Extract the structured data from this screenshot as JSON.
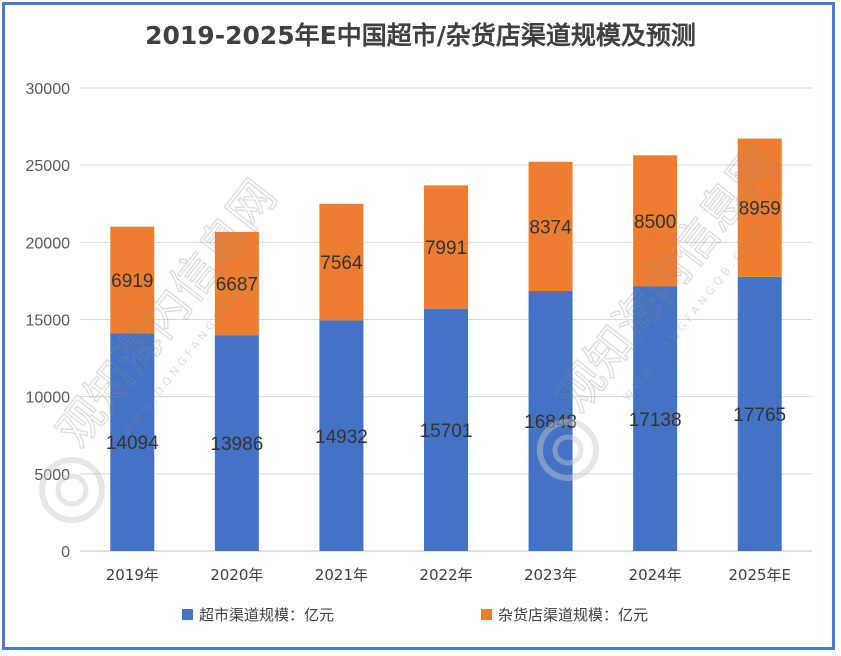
{
  "chart_data": {
    "type": "bar",
    "stacked": true,
    "title": "2019-2025年E中国超市/杂货店渠道规模及预测",
    "categories": [
      "2019年",
      "2020年",
      "2021年",
      "2022年",
      "2023年",
      "2024年",
      "2025年E"
    ],
    "series": [
      {
        "name": "超市渠道规模：亿元",
        "color": "#4472c4",
        "values": [
          14094,
          13986,
          14932,
          15701,
          16848,
          17138,
          17765
        ]
      },
      {
        "name": "杂货店渠道规模：亿元",
        "color": "#ed7d31",
        "values": [
          6919,
          6687,
          7564,
          7991,
          8374,
          8500,
          8959
        ]
      }
    ],
    "ylim": [
      0,
      30000
    ],
    "yticks": [
      0,
      5000,
      10000,
      15000,
      20000,
      25000,
      30000
    ],
    "grid": true,
    "legend_position": "bottom",
    "data_labels": true
  },
  "watermark": {
    "text": "观知海内信息网",
    "subtext": "WWW.DONGFANGQB.COM"
  },
  "colors": {
    "frame": "#4f79c7",
    "grid": "#d9d9d9",
    "axis": "#bfbfbf"
  }
}
